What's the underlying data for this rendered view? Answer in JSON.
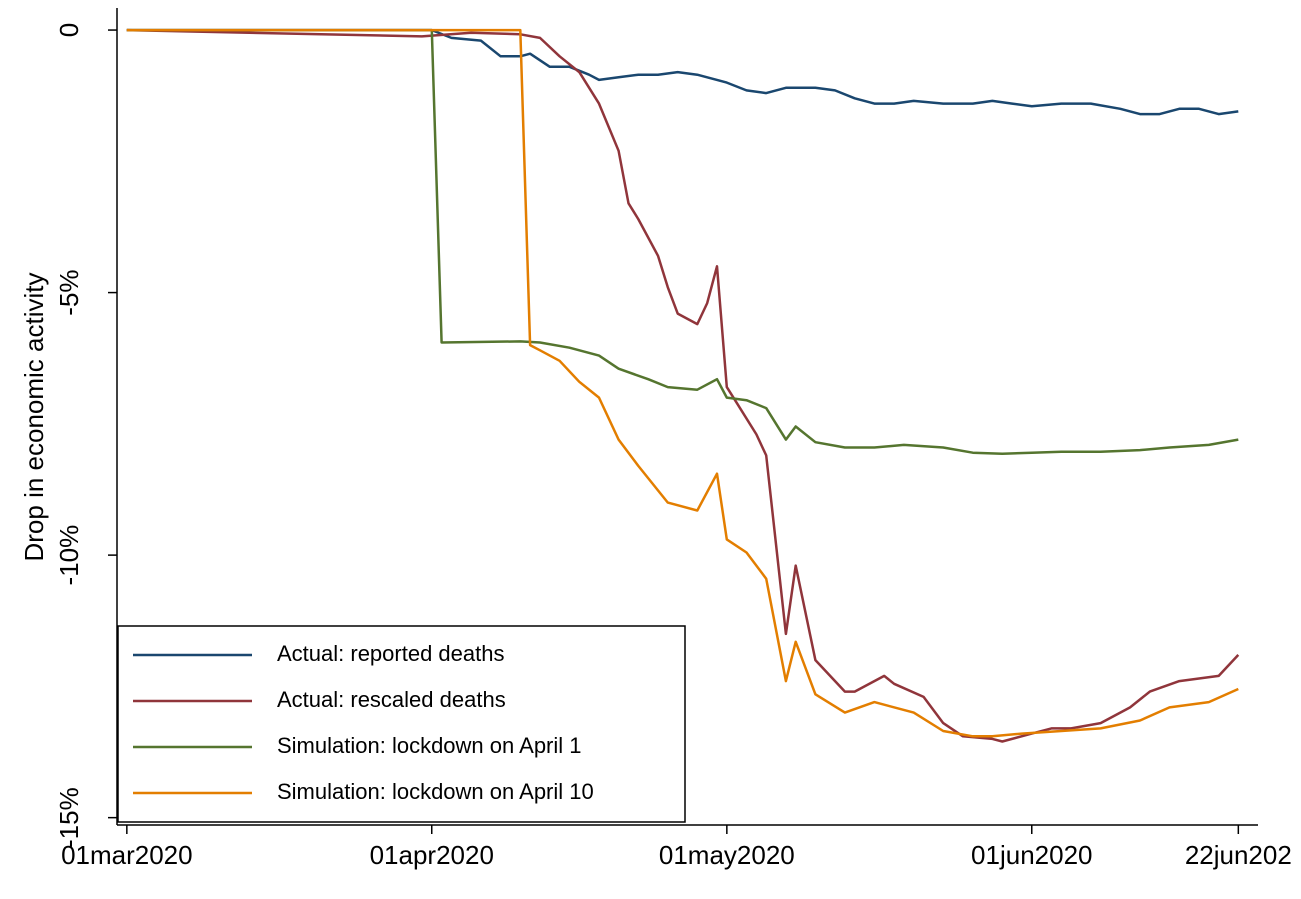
{
  "chart_data": {
    "type": "line",
    "ylabel": "Drop in economic activity",
    "xlim": [
      "2020-02-29",
      "2020-06-24"
    ],
    "xticks": [
      {
        "value": "2020-03-01",
        "label": "01mar2020"
      },
      {
        "value": "2020-04-01",
        "label": "01apr2020"
      },
      {
        "value": "2020-05-01",
        "label": "01may2020"
      },
      {
        "value": "2020-06-01",
        "label": "01jun2020"
      },
      {
        "value": "2020-06-22",
        "label": "22jun202"
      }
    ],
    "ylim": [
      -15.14,
      0.42
    ],
    "yticks": [
      0,
      {
        "value": -5,
        "label": "-5%"
      },
      {
        "value": -10,
        "label": "-10%"
      },
      {
        "value": -15,
        "label": "-15%"
      }
    ],
    "grid": false,
    "legend": "lower left",
    "series": [
      {
        "name": "Actual: reported deaths",
        "color": "#1a476f",
        "x": [
          "2020-03-01",
          "2020-04-01",
          "2020-04-03",
          "2020-04-06",
          "2020-04-08",
          "2020-04-10",
          "2020-04-11",
          "2020-04-13",
          "2020-04-15",
          "2020-04-17",
          "2020-04-18",
          "2020-04-20",
          "2020-04-22",
          "2020-04-24",
          "2020-04-26",
          "2020-04-28",
          "2020-04-30",
          "2020-05-01",
          "2020-05-03",
          "2020-05-05",
          "2020-05-07",
          "2020-05-10",
          "2020-05-12",
          "2020-05-14",
          "2020-05-16",
          "2020-05-18",
          "2020-05-20",
          "2020-05-23",
          "2020-05-26",
          "2020-05-28",
          "2020-05-30",
          "2020-06-01",
          "2020-06-04",
          "2020-06-07",
          "2020-06-10",
          "2020-06-12",
          "2020-06-14",
          "2020-06-16",
          "2020-06-18",
          "2020-06-20",
          "2020-06-22"
        ],
        "values": [
          0,
          0,
          -0.15,
          -0.2,
          -0.5,
          -0.5,
          -0.45,
          -0.7,
          -0.7,
          -0.85,
          -0.95,
          -0.9,
          -0.85,
          -0.85,
          -0.8,
          -0.85,
          -0.95,
          -1.0,
          -1.15,
          -1.2,
          -1.1,
          -1.1,
          -1.15,
          -1.3,
          -1.4,
          -1.4,
          -1.35,
          -1.4,
          -1.4,
          -1.35,
          -1.4,
          -1.45,
          -1.4,
          -1.4,
          -1.5,
          -1.6,
          -1.6,
          -1.5,
          -1.5,
          -1.6,
          -1.55
        ]
      },
      {
        "name": "Actual: rescaled deaths",
        "color": "#90353b",
        "x": [
          "2020-03-01",
          "2020-03-31",
          "2020-04-05",
          "2020-04-10",
          "2020-04-12",
          "2020-04-14",
          "2020-04-16",
          "2020-04-18",
          "2020-04-20",
          "2020-04-21",
          "2020-04-22",
          "2020-04-24",
          "2020-04-25",
          "2020-04-26",
          "2020-04-28",
          "2020-04-29",
          "2020-04-30",
          "2020-05-01",
          "2020-05-02",
          "2020-05-04",
          "2020-05-05",
          "2020-05-07",
          "2020-05-08",
          "2020-05-10",
          "2020-05-13",
          "2020-05-14",
          "2020-05-17",
          "2020-05-18",
          "2020-05-21",
          "2020-05-23",
          "2020-05-25",
          "2020-05-28",
          "2020-05-29",
          "2020-06-01",
          "2020-06-03",
          "2020-06-05",
          "2020-06-08",
          "2020-06-11",
          "2020-06-13",
          "2020-06-16",
          "2020-06-20",
          "2020-06-22"
        ],
        "values": [
          0,
          -0.12,
          -0.05,
          -0.08,
          -0.15,
          -0.5,
          -0.8,
          -1.4,
          -2.3,
          -3.3,
          -3.6,
          -4.3,
          -4.9,
          -5.4,
          -5.6,
          -5.2,
          -4.5,
          -6.8,
          -7.1,
          -7.7,
          -8.1,
          -11.5,
          -10.2,
          -12.0,
          -12.6,
          -12.6,
          -12.3,
          -12.45,
          -12.7,
          -13.2,
          -13.45,
          -13.5,
          -13.55,
          -13.4,
          -13.3,
          -13.3,
          -13.2,
          -12.9,
          -12.6,
          -12.4,
          -12.3,
          -11.9
        ]
      },
      {
        "name": "Simulation: lockdown on April 1",
        "color": "#55752f",
        "x": [
          "2020-03-01",
          "2020-04-01",
          "2020-04-02",
          "2020-04-10",
          "2020-04-12",
          "2020-04-15",
          "2020-04-18",
          "2020-04-20",
          "2020-04-23",
          "2020-04-25",
          "2020-04-28",
          "2020-04-30",
          "2020-05-01",
          "2020-05-03",
          "2020-05-05",
          "2020-05-07",
          "2020-05-08",
          "2020-05-10",
          "2020-05-13",
          "2020-05-16",
          "2020-05-19",
          "2020-05-23",
          "2020-05-26",
          "2020-05-29",
          "2020-06-01",
          "2020-06-04",
          "2020-06-08",
          "2020-06-12",
          "2020-06-15",
          "2020-06-19",
          "2020-06-22"
        ],
        "values": [
          0,
          0,
          -5.95,
          -5.93,
          -5.95,
          -6.05,
          -6.2,
          -6.45,
          -6.65,
          -6.8,
          -6.85,
          -6.65,
          -7.0,
          -7.05,
          -7.2,
          -7.8,
          -7.55,
          -7.85,
          -7.95,
          -7.95,
          -7.9,
          -7.95,
          -8.05,
          -8.07,
          -8.05,
          -8.03,
          -8.03,
          -8.0,
          -7.95,
          -7.9,
          -7.8
        ]
      },
      {
        "name": "Simulation: lockdown on April 10",
        "color": "#e37e00",
        "x": [
          "2020-03-01",
          "2020-04-10",
          "2020-04-11",
          "2020-04-12",
          "2020-04-14",
          "2020-04-16",
          "2020-04-18",
          "2020-04-20",
          "2020-04-22",
          "2020-04-25",
          "2020-04-28",
          "2020-04-30",
          "2020-05-01",
          "2020-05-03",
          "2020-05-05",
          "2020-05-07",
          "2020-05-08",
          "2020-05-10",
          "2020-05-13",
          "2020-05-16",
          "2020-05-20",
          "2020-05-23",
          "2020-05-26",
          "2020-05-28",
          "2020-05-31",
          "2020-06-04",
          "2020-06-08",
          "2020-06-12",
          "2020-06-15",
          "2020-06-19",
          "2020-06-22"
        ],
        "values": [
          0,
          0,
          -6.0,
          -6.1,
          -6.3,
          -6.7,
          -7.0,
          -7.8,
          -8.3,
          -9.0,
          -9.15,
          -8.45,
          -9.7,
          -9.95,
          -10.45,
          -12.4,
          -11.65,
          -12.65,
          -13.0,
          -12.8,
          -13.0,
          -13.35,
          -13.45,
          -13.45,
          -13.4,
          -13.35,
          -13.3,
          -13.15,
          -12.9,
          -12.8,
          -12.55
        ]
      }
    ]
  }
}
